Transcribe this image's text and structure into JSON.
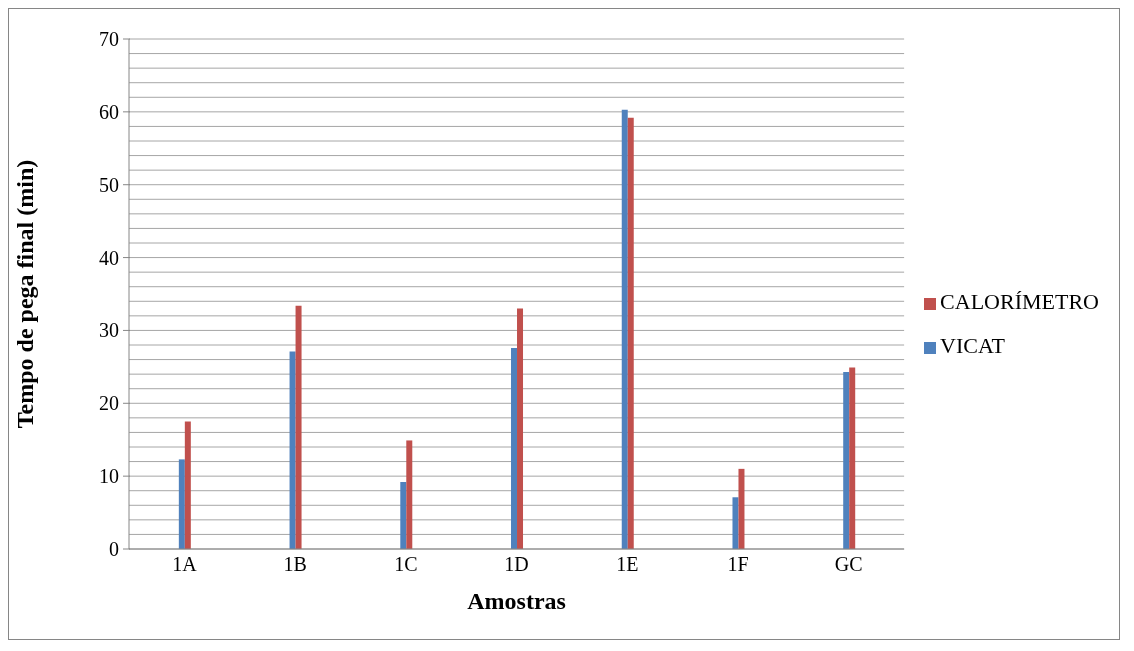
{
  "chart_data": {
    "type": "bar",
    "xlabel": "Amostras",
    "ylabel": "Tempo de pega final (min)",
    "categories": [
      "1A",
      "1B",
      "1C",
      "1D",
      "1E",
      "1F",
      "GC"
    ],
    "series": [
      {
        "name": "VICAT",
        "color": "#4f81bd",
        "values": [
          12.3,
          27.1,
          9.2,
          27.6,
          60.3,
          7.1,
          24.3
        ]
      },
      {
        "name": "CALORÍMETRO",
        "color": "#c0504d",
        "values": [
          17.5,
          33.4,
          14.9,
          33.0,
          59.2,
          11.0,
          24.9
        ]
      }
    ],
    "ylim": [
      0,
      70
    ],
    "yticks": [
      0,
      {
        "value": 2,
        "label": null
      },
      {
        "value": 4,
        "label": null
      },
      {
        "value": 6,
        "label": null
      },
      {
        "value": 8,
        "label": null
      },
      10,
      {
        "value": 12,
        "label": null
      },
      {
        "value": 14,
        "label": null
      },
      {
        "value": 16,
        "label": null
      },
      {
        "value": 18,
        "label": null
      },
      20,
      {
        "value": 22,
        "label": null
      },
      {
        "value": 24,
        "label": null
      },
      {
        "value": 26,
        "label": null
      },
      {
        "value": 28,
        "label": null
      },
      30,
      {
        "value": 32,
        "label": null
      },
      {
        "value": 34,
        "label": null
      },
      {
        "value": 36,
        "label": null
      },
      {
        "value": 38,
        "label": null
      },
      40,
      {
        "value": 42,
        "label": null
      },
      {
        "value": 44,
        "label": null
      },
      {
        "value": 46,
        "label": null
      },
      {
        "value": 48,
        "label": null
      },
      50,
      {
        "value": 52,
        "label": null
      },
      {
        "value": 54,
        "label": null
      },
      {
        "value": 56,
        "label": null
      },
      {
        "value": 58,
        "label": null
      },
      60,
      {
        "value": 62,
        "label": null
      },
      {
        "value": 64,
        "label": null
      },
      {
        "value": 66,
        "label": null
      },
      {
        "value": 68,
        "label": null
      },
      70
    ],
    "grid": "y",
    "legend": "right"
  }
}
